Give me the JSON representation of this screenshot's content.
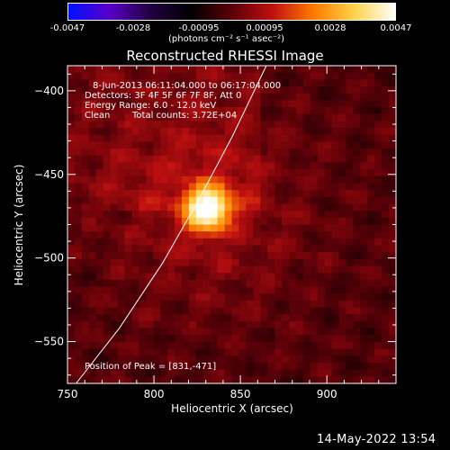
{
  "colorbar": {
    "ticks": [
      "-0.0047",
      "-0.0028",
      "-0.00095",
      "0.00095",
      "0.0028",
      "0.0047"
    ],
    "unit_label": "(photons cm⁻² s⁻¹ asec⁻²)",
    "palette": [
      "#0010ff",
      "#5a00c8",
      "#220040",
      "#000000",
      "#5a0008",
      "#c01010",
      "#ff7a00",
      "#ffd24a",
      "#ffffff"
    ]
  },
  "chart_data": {
    "type": "heatmap",
    "title": "Reconstructed RHESSI Image",
    "xlabel": "Heliocentric X (arcsec)",
    "ylabel": "Heliocentric Y (arcsec)",
    "xlim": [
      750,
      940
    ],
    "ylim": [
      -575,
      -385
    ],
    "x_ticks": [
      750,
      800,
      850,
      900
    ],
    "y_ticks": [
      -400,
      -450,
      -500,
      -550
    ],
    "peak": [
      831,
      -471
    ],
    "limb_curve": [
      [
        755,
        -575
      ],
      [
        780,
        -542
      ],
      [
        805,
        -503
      ],
      [
        826,
        -465
      ],
      [
        845,
        -428
      ],
      [
        865,
        -385
      ]
    ],
    "annotations": {
      "time_range": "8-Jun-2013 06:11:04.000 to 06:17:04.000",
      "detectors": "Detectors: 3F 4F 5F 6F 7F 8F, Att 0",
      "energy_range": "Energy Range: 6.0 - 12.0 keV",
      "method": "Clean",
      "total_counts": "Total counts: 3.72E+04",
      "peak_label": "Position of Peak = [831,-471]"
    }
  },
  "timestamp": "14-May-2022 13:54"
}
